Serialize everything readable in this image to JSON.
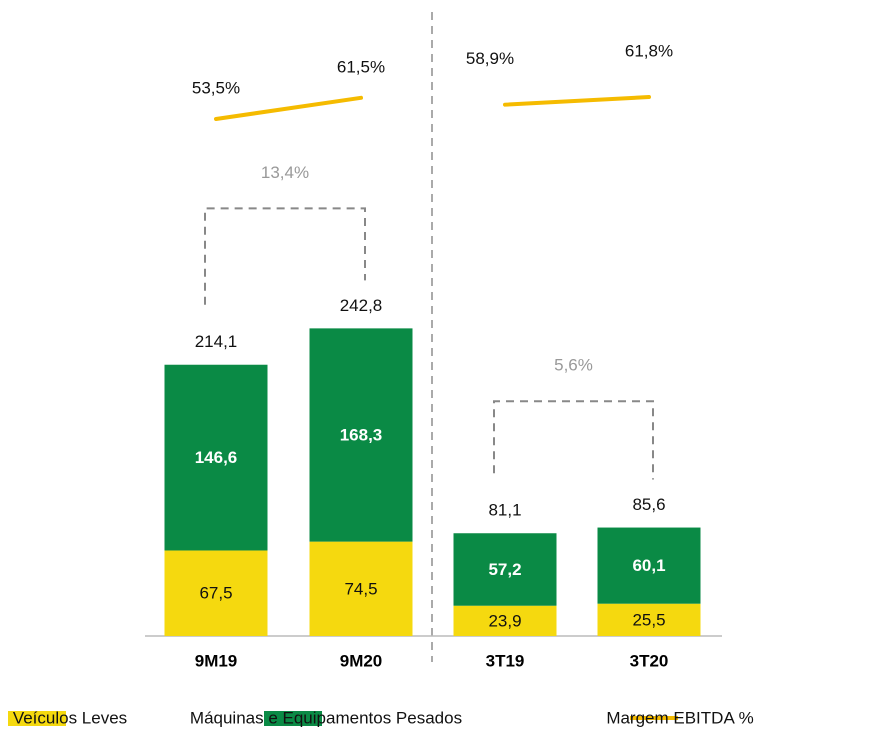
{
  "chart_data": {
    "type": "bar",
    "stacked": true,
    "categories": [
      "9M19",
      "9M20",
      "3T19",
      "3T20"
    ],
    "series": [
      {
        "name": "Veículos Leves",
        "color": "#f5d90f",
        "values": [
          67.5,
          74.5,
          23.9,
          25.5
        ],
        "value_labels": [
          "67,5",
          "74,5",
          "23,9",
          "25,5"
        ]
      },
      {
        "name": "Máquinas e Equipamentos Pesados",
        "color": "#0a8a45",
        "values": [
          146.6,
          168.3,
          57.2,
          60.1
        ],
        "value_labels": [
          "146,6",
          "168,3",
          "57,2",
          "60,1"
        ]
      },
      {
        "name": "Margem EBITDA %",
        "type": "line",
        "color": "#f5bb00",
        "values": [
          53.5,
          61.5,
          58.9,
          61.8
        ],
        "value_labels": [
          "53,5%",
          "61,5%",
          "58,9%",
          "61,8%"
        ]
      }
    ],
    "totals": {
      "values": [
        214.1,
        242.8,
        81.1,
        85.6
      ],
      "value_labels": [
        "214,1",
        "242,8",
        "81,1",
        "85,6"
      ]
    },
    "annotations": [
      "13,4%",
      "5,6%"
    ],
    "legend": "bottom"
  }
}
